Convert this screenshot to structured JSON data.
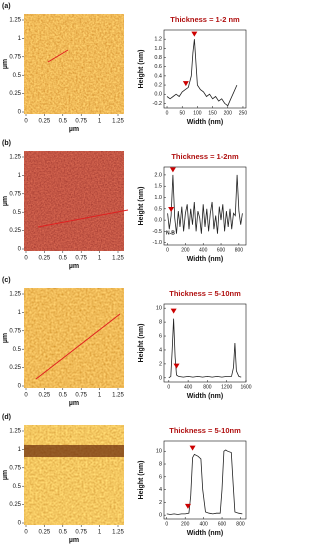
{
  "images": [
    {
      "label": "(a)",
      "xticks": [
        0,
        0.25,
        0.5,
        0.75,
        1,
        1.25
      ],
      "yticks": [
        0,
        0.25,
        0.5,
        0.75,
        1,
        1.25
      ],
      "xlabel": "µm",
      "ylabel": "µm"
    },
    {
      "label": "(b)",
      "xticks": [
        0,
        0.25,
        0.5,
        0.75,
        1,
        1.25
      ],
      "yticks": [
        0,
        0.25,
        0.5,
        0.75,
        1,
        1.25
      ],
      "xlabel": "µm",
      "ylabel": "µm"
    },
    {
      "label": "(c)",
      "xticks": [
        0,
        0.25,
        0.5,
        0.75,
        1,
        1.25
      ],
      "yticks": [
        0,
        0.25,
        0.5,
        0.75,
        1,
        1.25
      ],
      "xlabel": "µm",
      "ylabel": "µm"
    },
    {
      "label": "(d)",
      "xticks": [
        0,
        0.25,
        0.5,
        0.75,
        1,
        1.25
      ],
      "yticks": [
        0,
        0.25,
        0.5,
        0.75,
        1,
        1.25
      ],
      "xlabel": "µm",
      "ylabel": "µm"
    }
  ],
  "chart_data": [
    {
      "type": "line",
      "title": "Thickness = 1-2 nm",
      "xlabel": "Width (nm)",
      "ylabel": "Height (nm)",
      "color": "#222222",
      "marker_color": "#cc0000",
      "x": [
        0,
        10,
        20,
        30,
        40,
        50,
        60,
        70,
        80,
        85,
        90,
        95,
        100,
        110,
        120,
        130,
        140,
        150,
        160,
        170,
        180,
        190,
        200,
        210,
        220,
        230
      ],
      "values": [
        -0.05,
        -0.1,
        -0.05,
        0,
        -0.05,
        0.05,
        0.1,
        0.15,
        0.4,
        0.9,
        1.2,
        0.7,
        0.2,
        0.1,
        0.05,
        -0.05,
        0,
        -0.1,
        -0.05,
        -0.15,
        -0.1,
        -0.2,
        -0.25,
        -0.1,
        0.05,
        0.2
      ],
      "markers": [
        {
          "x": 62,
          "y": 0.22
        },
        {
          "x": 90,
          "y": 1.3
        }
      ],
      "xlim": [
        -10,
        260
      ],
      "ylim": [
        -0.3,
        1.4
      ],
      "xticks": [
        0,
        50,
        100,
        150,
        200,
        250
      ],
      "yticks": [
        -0.2,
        {
          "value": 0,
          "label": "0.0"
        },
        0.2,
        0.4,
        0.6,
        0.8,
        {
          "value": 1,
          "label": "1.0"
        },
        1.2
      ]
    },
    {
      "type": "line",
      "title": "Thickness = 1-2nm",
      "xlabel": "Width (nm)",
      "ylabel": "Height (nm)",
      "color": "#222222",
      "marker_color": "#cc0000",
      "annotation": "N-B",
      "x": [
        0,
        20,
        40,
        60,
        80,
        100,
        120,
        140,
        160,
        180,
        200,
        220,
        240,
        260,
        280,
        300,
        320,
        340,
        360,
        380,
        400,
        420,
        440,
        460,
        480,
        500,
        520,
        540,
        560,
        580,
        600,
        620,
        640,
        660,
        680,
        700,
        720,
        740,
        760,
        780,
        800,
        820,
        840
      ],
      "values": [
        0.3,
        -0.4,
        0.2,
        2.0,
        0.1,
        -0.6,
        0.4,
        -0.3,
        0.6,
        -0.5,
        0.3,
        0.7,
        -0.4,
        0.5,
        -0.2,
        0.8,
        -0.5,
        0.4,
        0.1,
        -0.6,
        0.7,
        -0.3,
        0.5,
        -0.5,
        0.3,
        0.8,
        -0.4,
        0.2,
        -0.6,
        0.6,
        0.0,
        0.7,
        -0.5,
        0.4,
        -0.3,
        0.5,
        -0.4,
        0.3,
        0.2,
        2.0,
        0.4,
        -0.2,
        0.3
      ],
      "markers": [
        {
          "x": 60,
          "y": 2.2
        },
        {
          "x": 40,
          "y": 0.45
        }
      ],
      "xlim": [
        -40,
        880
      ],
      "ylim": [
        -1.1,
        2.35
      ],
      "xticks": [
        0,
        200,
        400,
        600,
        800
      ],
      "yticks": [
        {
          "value": -1,
          "label": "-1.0"
        },
        -0.5,
        {
          "value": 0,
          "label": "0.0"
        },
        0.5,
        {
          "value": 1,
          "label": "1.0"
        },
        1.5,
        {
          "value": 2,
          "label": "2.0"
        }
      ]
    },
    {
      "type": "line",
      "title": "Thickness = 5-10nm",
      "xlabel": "Width (nm)",
      "ylabel": "Height (nm)",
      "color": "#222222",
      "marker_color": "#cc0000",
      "x": [
        0,
        40,
        70,
        100,
        130,
        160,
        200,
        300,
        400,
        500,
        600,
        700,
        800,
        900,
        1000,
        1100,
        1200,
        1300,
        1340,
        1370,
        1400,
        1450,
        1500
      ],
      "values": [
        0,
        0.2,
        4,
        8.5,
        3,
        0.4,
        0.2,
        0.1,
        0.2,
        0.1,
        0.2,
        0.1,
        0.2,
        0.1,
        0.2,
        0.1,
        0.2,
        0.2,
        1.5,
        5,
        1,
        0.2,
        0.1
      ],
      "markers": [
        {
          "x": 100,
          "y": 9.5
        },
        {
          "x": 160,
          "y": 1.6
        }
      ],
      "xlim": [
        -100,
        1600
      ],
      "ylim": [
        -0.6,
        10.6
      ],
      "xticks": [
        0,
        400,
        800,
        1200,
        1600
      ],
      "yticks": [
        0,
        2,
        4,
        6,
        8,
        10
      ]
    },
    {
      "type": "line",
      "title": "Thickness = 5-10nm",
      "xlabel": "Width (nm)",
      "ylabel": "Height (nm)",
      "color": "#222222",
      "marker_color": "#cc0000",
      "x": [
        0,
        40,
        80,
        120,
        160,
        200,
        240,
        260,
        280,
        300,
        340,
        370,
        390,
        420,
        460,
        500,
        540,
        580,
        600,
        620,
        640,
        660,
        700,
        720,
        740,
        780,
        820
      ],
      "values": [
        0.2,
        0.1,
        0.2,
        0.1,
        0.2,
        0.2,
        0.3,
        3,
        9,
        9.5,
        9.2,
        8.8,
        4,
        0.5,
        0.3,
        0.2,
        0.3,
        0.3,
        4,
        10,
        10.2,
        10,
        9.8,
        5,
        0.5,
        0.3,
        0.2
      ],
      "markers": [
        {
          "x": 280,
          "y": 10.4
        },
        {
          "x": 230,
          "y": 1.3
        }
      ],
      "xlim": [
        -30,
        860
      ],
      "ylim": [
        -0.6,
        11.6
      ],
      "xticks": [
        0,
        200,
        400,
        600,
        800
      ],
      "yticks": [
        0,
        2,
        4,
        6,
        8,
        10
      ]
    }
  ]
}
